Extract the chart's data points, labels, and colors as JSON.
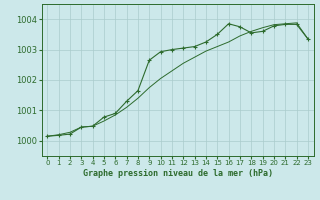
{
  "title": "Graphe pression niveau de la mer (hPa)",
  "background_color": "#cce8ea",
  "grid_color": "#aacccc",
  "line_color": "#2d6b2d",
  "xlim": [
    -0.5,
    23.5
  ],
  "ylim": [
    999.5,
    1004.5
  ],
  "yticks": [
    1000,
    1001,
    1002,
    1003,
    1004
  ],
  "xticks": [
    0,
    1,
    2,
    3,
    4,
    5,
    6,
    7,
    8,
    9,
    10,
    11,
    12,
    13,
    14,
    15,
    16,
    17,
    18,
    19,
    20,
    21,
    22,
    23
  ],
  "series1_x": [
    0,
    1,
    2,
    3,
    4,
    5,
    6,
    7,
    8,
    9,
    10,
    11,
    12,
    13,
    14,
    15,
    16,
    17,
    18,
    19,
    20,
    21,
    22,
    23
  ],
  "series1_y": [
    1000.15,
    1000.18,
    1000.22,
    1000.45,
    1000.48,
    1000.78,
    1000.9,
    1001.3,
    1001.65,
    1002.65,
    1002.93,
    1003.0,
    1003.05,
    1003.1,
    1003.25,
    1003.5,
    1003.85,
    1003.75,
    1003.55,
    1003.6,
    1003.78,
    1003.83,
    1003.83,
    1003.35
  ],
  "series2_x": [
    0,
    1,
    2,
    3,
    4,
    5,
    6,
    7,
    8,
    9,
    10,
    11,
    12,
    13,
    14,
    15,
    16,
    17,
    18,
    19,
    20,
    21,
    22,
    23
  ],
  "series2_y": [
    1000.15,
    1000.2,
    1000.28,
    1000.45,
    1000.48,
    1000.65,
    1000.85,
    1001.1,
    1001.4,
    1001.75,
    1002.05,
    1002.3,
    1002.55,
    1002.75,
    1002.95,
    1003.1,
    1003.25,
    1003.45,
    1003.6,
    1003.72,
    1003.82,
    1003.85,
    1003.88,
    1003.35
  ]
}
